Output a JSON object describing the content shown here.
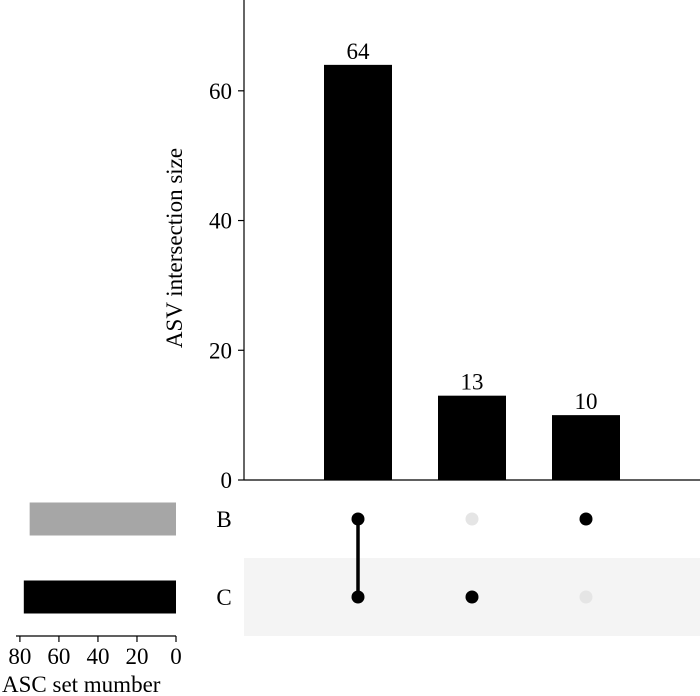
{
  "chart_data": {
    "type": "bar",
    "intersections": [
      {
        "label": "64",
        "value": 64,
        "members": [
          "B",
          "C"
        ]
      },
      {
        "label": "13",
        "value": 13,
        "members": [
          "C"
        ]
      },
      {
        "label": "10",
        "value": 10,
        "members": [
          "B"
        ]
      }
    ],
    "ylabel": "ASV intersection size",
    "ylim": [
      0,
      74
    ],
    "y_ticks": [
      "0",
      "20",
      "40",
      "60"
    ],
    "y_tick_values": [
      0,
      20,
      40,
      60
    ],
    "sets": [
      {
        "name": "B",
        "size": 75,
        "color": "#a6a6a6"
      },
      {
        "name": "C",
        "size": 78,
        "color": "#000000"
      }
    ],
    "set_axis_label": "ASC set mumber",
    "set_ticks": [
      "80",
      "60",
      "40",
      "20",
      "0"
    ],
    "set_tick_values": [
      80,
      60,
      40,
      20,
      0
    ],
    "set_xlim": [
      0,
      82
    ],
    "colors": {
      "bar": "#000000",
      "dot_active": "#000000",
      "dot_inactive": "#e5e5e5",
      "row_stripe": "#f4f4f4"
    }
  }
}
